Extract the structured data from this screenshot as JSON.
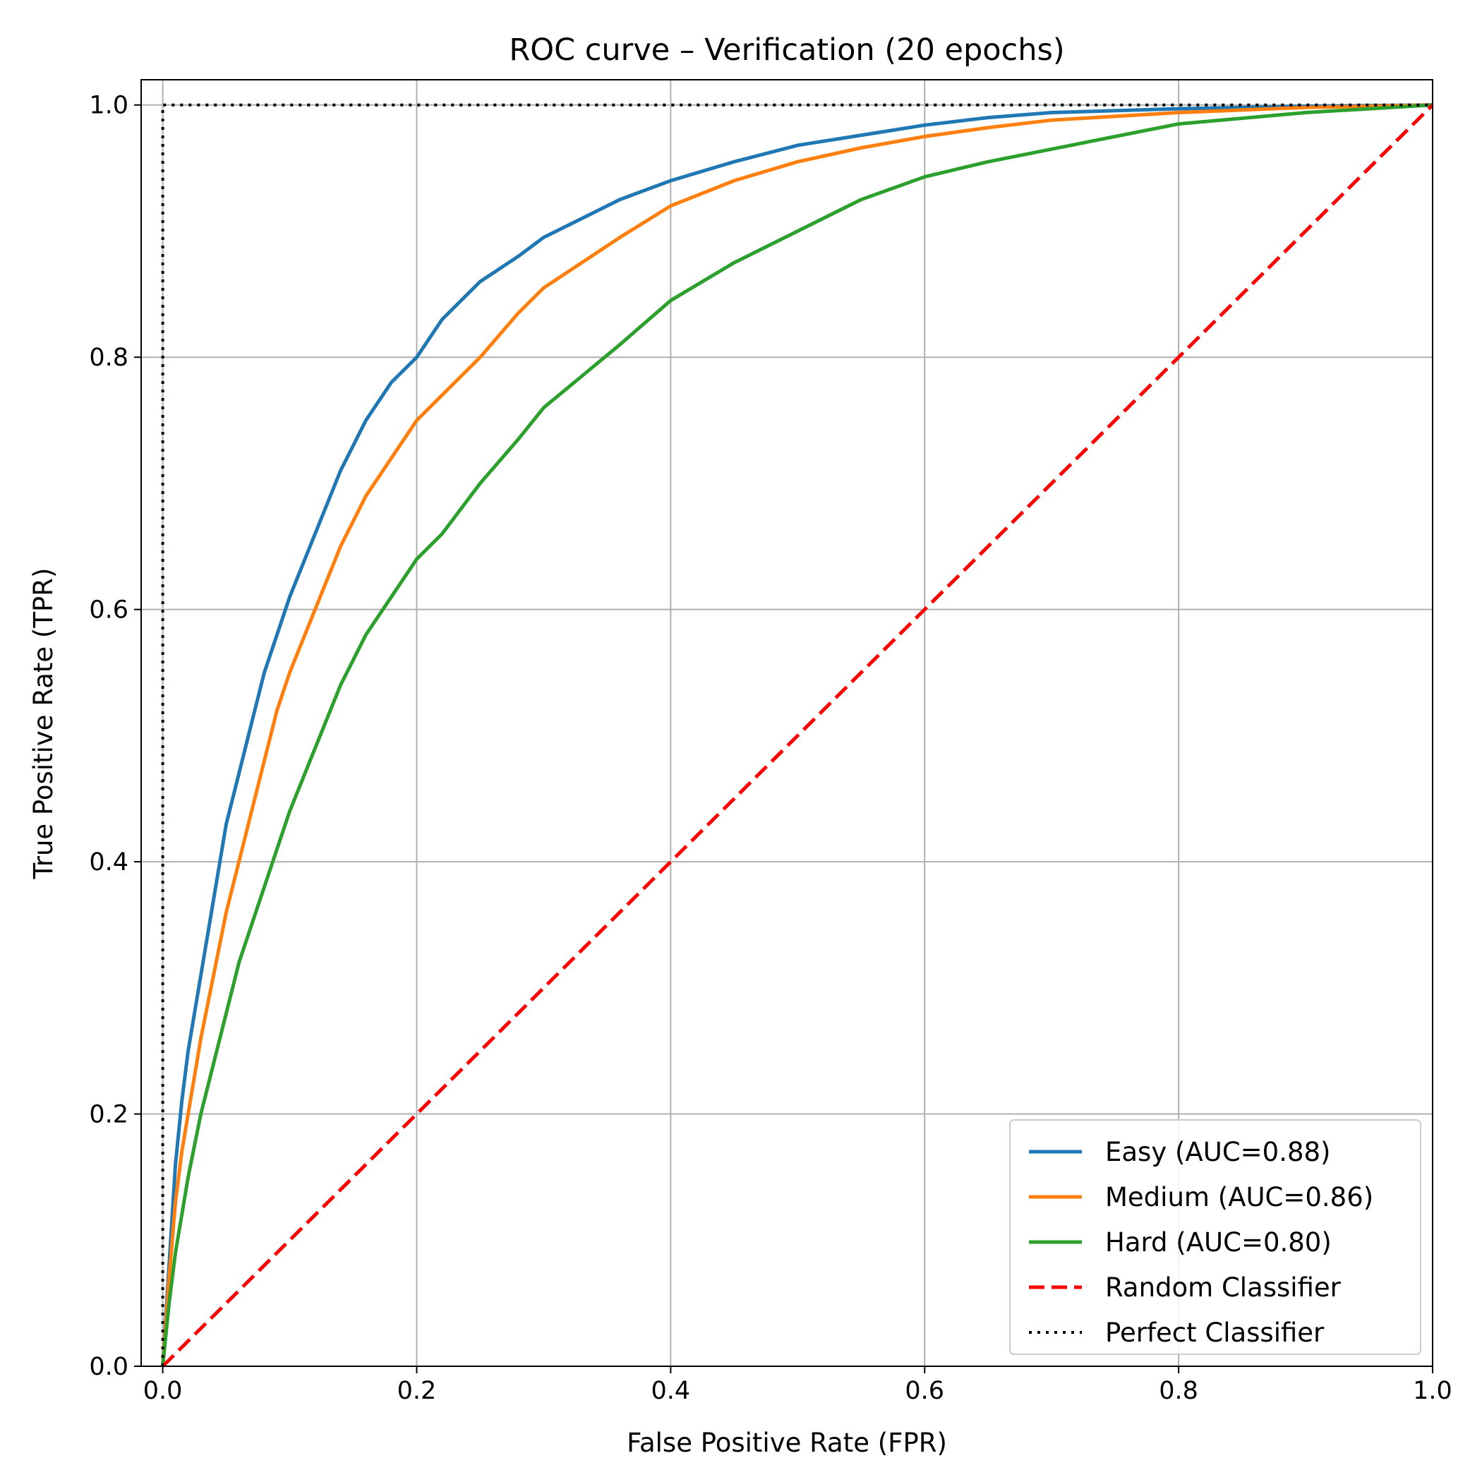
{
  "chart_data": {
    "type": "line",
    "title": "ROC curve – Verification (20 epochs)",
    "xlabel": "False Positive Rate (FPR)",
    "ylabel": "True Positive Rate (TPR)",
    "xlim": [
      -0.017,
      1.0
    ],
    "ylim": [
      0.0,
      1.02
    ],
    "xticks": [
      0.0,
      0.2,
      0.4,
      0.6,
      0.8,
      1.0
    ],
    "yticks": [
      0.0,
      0.2,
      0.4,
      0.6,
      0.8,
      1.0
    ],
    "xtick_labels": [
      "0.0",
      "0.2",
      "0.4",
      "0.6",
      "0.8",
      "1.0"
    ],
    "ytick_labels": [
      "0.0",
      "0.2",
      "0.4",
      "0.6",
      "0.8",
      "1.0"
    ],
    "grid": true,
    "legend_position": "lower-right",
    "series": [
      {
        "name": "Easy (AUC=0.88)",
        "color": "#1f77b4",
        "style": "solid",
        "x": [
          0.0,
          0.005,
          0.01,
          0.015,
          0.02,
          0.03,
          0.04,
          0.05,
          0.06,
          0.07,
          0.08,
          0.09,
          0.1,
          0.12,
          0.14,
          0.16,
          0.18,
          0.2,
          0.22,
          0.25,
          0.28,
          0.3,
          0.33,
          0.36,
          0.4,
          0.45,
          0.5,
          0.55,
          0.6,
          0.65,
          0.7,
          0.8,
          0.9,
          1.0
        ],
        "y": [
          0.0,
          0.08,
          0.16,
          0.21,
          0.25,
          0.31,
          0.37,
          0.43,
          0.47,
          0.51,
          0.55,
          0.58,
          0.61,
          0.66,
          0.71,
          0.75,
          0.78,
          0.8,
          0.83,
          0.86,
          0.88,
          0.895,
          0.91,
          0.925,
          0.94,
          0.955,
          0.968,
          0.976,
          0.984,
          0.99,
          0.994,
          0.997,
          0.999,
          1.0
        ]
      },
      {
        "name": "Medium (AUC=0.86)",
        "color": "#ff7f0e",
        "style": "solid",
        "x": [
          0.0,
          0.005,
          0.01,
          0.015,
          0.02,
          0.03,
          0.04,
          0.05,
          0.06,
          0.07,
          0.08,
          0.09,
          0.1,
          0.12,
          0.14,
          0.16,
          0.18,
          0.2,
          0.22,
          0.25,
          0.28,
          0.3,
          0.33,
          0.36,
          0.4,
          0.45,
          0.5,
          0.55,
          0.6,
          0.65,
          0.7,
          0.8,
          0.9,
          1.0
        ],
        "y": [
          0.0,
          0.07,
          0.13,
          0.17,
          0.2,
          0.26,
          0.31,
          0.36,
          0.4,
          0.44,
          0.48,
          0.52,
          0.55,
          0.6,
          0.65,
          0.69,
          0.72,
          0.75,
          0.77,
          0.8,
          0.835,
          0.855,
          0.875,
          0.895,
          0.92,
          0.94,
          0.955,
          0.966,
          0.975,
          0.982,
          0.988,
          0.994,
          0.998,
          1.0
        ]
      },
      {
        "name": "Hard (AUC=0.80)",
        "color": "#2ca02c",
        "style": "solid",
        "x": [
          0.0,
          0.005,
          0.01,
          0.015,
          0.02,
          0.03,
          0.04,
          0.05,
          0.06,
          0.07,
          0.08,
          0.09,
          0.1,
          0.12,
          0.14,
          0.16,
          0.18,
          0.2,
          0.22,
          0.25,
          0.28,
          0.3,
          0.33,
          0.36,
          0.4,
          0.45,
          0.5,
          0.55,
          0.6,
          0.65,
          0.7,
          0.8,
          0.9,
          1.0
        ],
        "y": [
          0.0,
          0.05,
          0.09,
          0.12,
          0.15,
          0.2,
          0.24,
          0.28,
          0.32,
          0.35,
          0.38,
          0.41,
          0.44,
          0.49,
          0.54,
          0.58,
          0.61,
          0.64,
          0.66,
          0.7,
          0.735,
          0.76,
          0.785,
          0.81,
          0.845,
          0.875,
          0.9,
          0.925,
          0.943,
          0.955,
          0.965,
          0.985,
          0.994,
          1.0
        ]
      },
      {
        "name": "Random Classifier",
        "color": "#ff0000",
        "style": "dashed",
        "x": [
          0.0,
          1.0
        ],
        "y": [
          0.0,
          1.0
        ]
      },
      {
        "name": "Perfect Classifier",
        "color": "#000000",
        "style": "dotted",
        "x": [
          0.0,
          0.0,
          1.0
        ],
        "y": [
          0.0,
          1.0,
          1.0
        ]
      }
    ]
  }
}
